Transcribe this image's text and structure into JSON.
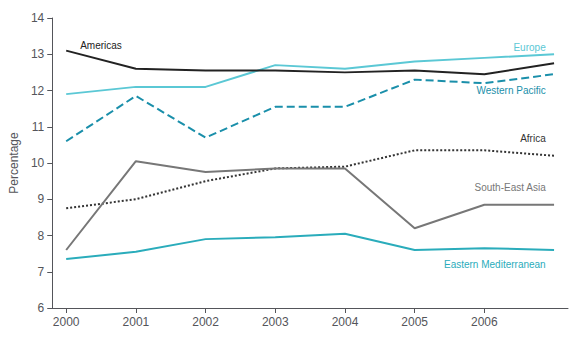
{
  "chart_data": {
    "type": "line",
    "x": [
      2000,
      2001,
      2002,
      2003,
      2004,
      2005,
      2006,
      2007
    ],
    "series": [
      {
        "name": "Europe",
        "color": "#5bc8d5",
        "line_style": "solid",
        "values": [
          11.9,
          12.1,
          12.1,
          12.7,
          12.6,
          12.8,
          12.9,
          13.0
        ]
      },
      {
        "name": "Americas",
        "color": "#222222",
        "line_style": "solid",
        "values": [
          13.1,
          12.6,
          12.55,
          12.55,
          12.5,
          12.55,
          12.45,
          12.75
        ]
      },
      {
        "name": "Western Pacific",
        "color": "#1a8faa",
        "line_style": "dashed",
        "values": [
          10.6,
          11.85,
          10.7,
          11.55,
          11.55,
          12.3,
          12.2,
          12.45
        ]
      },
      {
        "name": "Africa",
        "color": "#333333",
        "line_style": "dotted",
        "values": [
          8.75,
          9.0,
          9.5,
          9.85,
          9.9,
          10.35,
          10.35,
          10.2
        ]
      },
      {
        "name": "South-East Asia",
        "color": "#777777",
        "line_style": "solid",
        "values": [
          7.6,
          10.05,
          9.75,
          9.85,
          9.85,
          8.2,
          8.85,
          8.85
        ]
      },
      {
        "name": "Eastern Mediterranean",
        "color": "#2aacbb",
        "line_style": "solid",
        "values": [
          7.35,
          7.55,
          7.9,
          7.95,
          8.05,
          7.6,
          7.65,
          7.6
        ]
      }
    ],
    "annotations": [
      {
        "text": "Europe",
        "x": 2006.88,
        "y": 13.05
      },
      {
        "text": "Americas",
        "x": 2000.2,
        "y": 13.1
      },
      {
        "text": "Western Pacific",
        "x": 2006.88,
        "y": 12.15
      },
      {
        "text": "Africa",
        "x": 2006.88,
        "y": 10.55
      },
      {
        "text": "South-East Asia",
        "x": 2006.88,
        "y": 9.2
      },
      {
        "text": "Eastern Mediterranean",
        "x": 2006.88,
        "y": 7.35
      }
    ],
    "ylabel": "Percentage",
    "xlim": [
      1999.8,
      2007.2
    ],
    "xticks": [
      2000,
      2001,
      2002,
      2003,
      2004,
      2005,
      2006
    ],
    "ylim": [
      6,
      14
    ],
    "yticks": [
      6,
      7,
      8,
      9,
      10,
      11,
      12,
      13,
      14
    ],
    "grid": false
  }
}
